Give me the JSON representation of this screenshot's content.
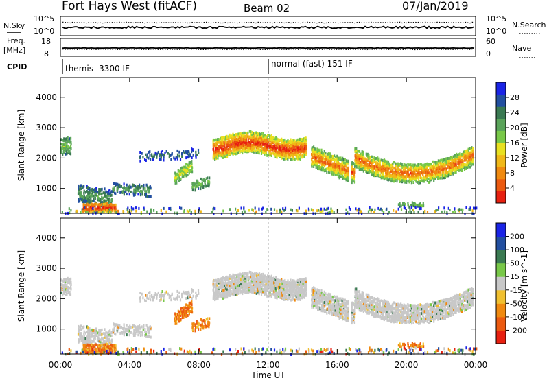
{
  "header": {
    "title": "Fort Hays West (fitACF)",
    "beam": "Beam 02",
    "date": "07/Jan/2019"
  },
  "chart_data": [
    {
      "type": "line",
      "panel": "noise",
      "left_label": "N.Sky",
      "right_label": "N.Search",
      "left_ticks": [
        "10^5",
        "10^0"
      ],
      "right_ticks": [
        "10^5",
        "10^0"
      ]
    },
    {
      "type": "line",
      "panel": "frequency",
      "left_label_lines": [
        "Freq.",
        "[MHz]"
      ],
      "right_label": "Nave",
      "left_ticks": [
        "18",
        "8"
      ],
      "right_ticks": [
        "60",
        "0"
      ],
      "cpid_label": "CPID",
      "cpid_segments": [
        {
          "text": "themis -3300 IF"
        },
        {
          "text": "normal (fast) 151 IF"
        }
      ]
    },
    {
      "type": "heatmap",
      "panel": "power",
      "ylabel": "Slant Range [km]",
      "yticks": [
        1000,
        2000,
        3000,
        4000
      ],
      "ylim": [
        180,
        4650
      ],
      "colorbar_label": "Power [dB]",
      "colorbar_ticks": [
        "28",
        "24",
        "20",
        "16",
        "12",
        "8",
        "4"
      ],
      "colors": [
        "#1a24e6",
        "#224fa0",
        "#3a7a52",
        "#5aa45a",
        "#78c848",
        "#e8e020",
        "#f0b818",
        "#f08a10",
        "#ec5a10",
        "#e82010"
      ]
    },
    {
      "type": "heatmap",
      "panel": "velocity",
      "ylabel": "Slant Range [km]",
      "yticks": [
        1000,
        2000,
        3000,
        4000
      ],
      "ylim": [
        180,
        4650
      ],
      "colorbar_label": "Velocity [m s^-1]",
      "colorbar_ticks": [
        "200",
        "100",
        "50",
        "15",
        "-15",
        "-50",
        "-100",
        "-200"
      ],
      "colors": [
        "#1a24e6",
        "#224fa0",
        "#3a7a52",
        "#78c848",
        "#c8c8c8",
        "#f0c030",
        "#f08a10",
        "#ec5a10",
        "#e82010"
      ]
    }
  ],
  "xaxis": {
    "label": "Time UT",
    "ticks": [
      "00:00",
      "04:00",
      "08:00",
      "12:00",
      "16:00",
      "20:00",
      "00:00"
    ]
  }
}
